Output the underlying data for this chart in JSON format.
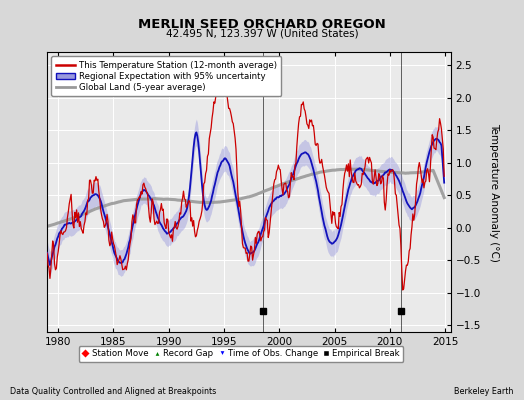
{
  "title": "MERLIN SEED ORCHARD OREGON",
  "subtitle": "42.495 N, 123.397 W (United States)",
  "ylabel": "Temperature Anomaly (°C)",
  "xlabel_left": "Data Quality Controlled and Aligned at Breakpoints",
  "xlabel_right": "Berkeley Earth",
  "xlim": [
    1979.0,
    2015.5
  ],
  "ylim": [
    -1.6,
    2.7
  ],
  "yticks": [
    -1.5,
    -1.0,
    -0.5,
    0.0,
    0.5,
    1.0,
    1.5,
    2.0,
    2.5
  ],
  "xticks": [
    1980,
    1985,
    1990,
    1995,
    2000,
    2005,
    2010,
    2015
  ],
  "fig_bg_color": "#d8d8d8",
  "plot_bg_color": "#eaeaea",
  "red_line_color": "#cc0000",
  "blue_line_color": "#1111bb",
  "blue_fill_color": "#9999dd",
  "gray_line_color": "#999999",
  "grid_color": "#ffffff",
  "empirical_break_years": [
    1998.5,
    2011.0
  ],
  "legend_items": [
    "This Temperature Station (12-month average)",
    "Regional Expectation with 95% uncertainty",
    "Global Land (5-year average)"
  ],
  "bottom_legend": [
    "Station Move",
    "Record Gap",
    "Time of Obs. Change",
    "Empirical Break"
  ]
}
